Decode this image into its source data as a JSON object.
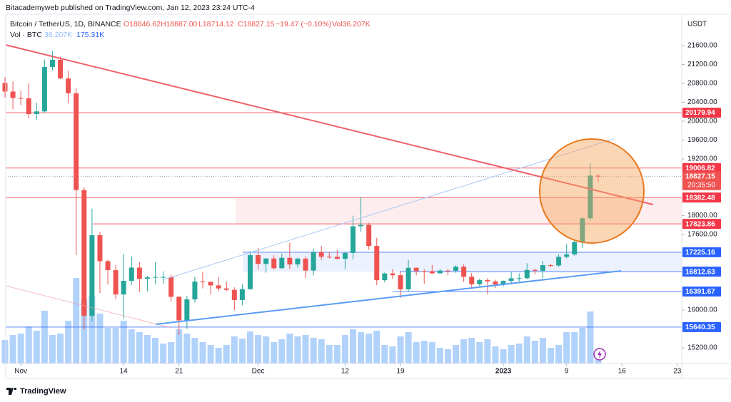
{
  "chart_data": {
    "type": "candlestick",
    "header": "Bitacademyweb published on TradingView.com, Jan 12, 2023 23:24 UTC-4",
    "symbol": "Bitcoin / TetherUS, 1D, BINANCE",
    "ohlc_text": {
      "open": "O18846.62",
      "high": "H18887.00",
      "low": "L18714.12",
      "close": "C18827.15",
      "change": "−19.47 (−0.10%)",
      "volume": "Vol36.207K"
    },
    "volume_legend": {
      "name": "Vol · BTC",
      "value": "36.207K",
      "ma": "175.31K"
    },
    "currency": "USDT",
    "countdown": "20:35:50",
    "footer": "TradingView",
    "up_color": "#26a69a",
    "down_color": "#ef5350",
    "volume_color": "#90bff9",
    "grid": false,
    "x": [
      "2022-10-30",
      "2022-10-31",
      "2022-11-01",
      "2022-11-02",
      "2022-11-03",
      "2022-11-04",
      "2022-11-05",
      "2022-11-06",
      "2022-11-07",
      "2022-11-08",
      "2022-11-09",
      "2022-11-10",
      "2022-11-11",
      "2022-11-12",
      "2022-11-13",
      "2022-11-14",
      "2022-11-15",
      "2022-11-16",
      "2022-11-17",
      "2022-11-18",
      "2022-11-19",
      "2022-11-20",
      "2022-11-21",
      "2022-11-22",
      "2022-11-23",
      "2022-11-24",
      "2022-11-25",
      "2022-11-26",
      "2022-11-27",
      "2022-11-28",
      "2022-11-29",
      "2022-11-30",
      "2022-12-01",
      "2022-12-02",
      "2022-12-03",
      "2022-12-04",
      "2022-12-05",
      "2022-12-06",
      "2022-12-07",
      "2022-12-08",
      "2022-12-09",
      "2022-12-10",
      "2022-12-11",
      "2022-12-12",
      "2022-12-13",
      "2022-12-14",
      "2022-12-15",
      "2022-12-16",
      "2022-12-17",
      "2022-12-18",
      "2022-12-19",
      "2022-12-20",
      "2022-12-21",
      "2022-12-22",
      "2022-12-23",
      "2022-12-24",
      "2022-12-25",
      "2022-12-26",
      "2022-12-27",
      "2022-12-28",
      "2022-12-29",
      "2022-12-30",
      "2022-12-31",
      "2023-01-01",
      "2023-01-02",
      "2023-01-03",
      "2023-01-04",
      "2023-01-05",
      "2023-01-06",
      "2023-01-07",
      "2023-01-08",
      "2023-01-09",
      "2023-01-10",
      "2023-01-11",
      "2023-01-12",
      "2023-01-13"
    ],
    "open": [
      20810,
      20627,
      20490,
      20483,
      20151,
      20207,
      21148,
      21300,
      20905,
      20591,
      18541,
      15880,
      17586,
      17035,
      16845,
      16330,
      16619,
      16900,
      16662,
      16692,
      16700,
      16700,
      16280,
      15781,
      16226,
      16603,
      16598,
      16522,
      16458,
      16428,
      16212,
      16442,
      17163,
      16977,
      17092,
      16885,
      17105,
      16967,
      17089,
      16836,
      17224,
      17128,
      17127,
      17085,
      17209,
      17774,
      17803,
      17357,
      16632,
      16776,
      16738,
      16438,
      16895,
      16824,
      16821,
      16778,
      16836,
      16832,
      16919,
      16706,
      16547,
      16633,
      16607,
      16542,
      16616,
      16672,
      16675,
      16850,
      16831,
      16950,
      16943,
      17127,
      17178,
      17440,
      17943,
      18846.62
    ],
    "high": [
      20930,
      20840,
      20650,
      20800,
      20393,
      21302,
      21480,
      21365,
      21069,
      20700,
      18600,
      18150,
      17660,
      17070,
      16954,
      17190,
      17134,
      17015,
      16727,
      17011,
      16820,
      16746,
      16294,
      16300,
      16708,
      16812,
      16603,
      16700,
      16600,
      16480,
      16550,
      17250,
      17320,
      17100,
      17160,
      17200,
      17424,
      17111,
      17140,
      17299,
      17360,
      17227,
      17270,
      17241,
      18000,
      18387,
      17846,
      17530,
      16796,
      16864,
      16815,
      17061,
      16900,
      16868,
      16955,
      16869,
      16868,
      16944,
      16972,
      16785,
      16664,
      16677,
      16644,
      16628,
      16799,
      16778,
      16991,
      16879,
      17042,
      16981,
      17176,
      17398,
      17500,
      17980,
      19117,
      18887
    ],
    "low": [
      20500,
      20250,
      20340,
      20060,
      20031,
      20180,
      21080,
      20890,
      20384,
      17166,
      15588,
      15754,
      16361,
      16540,
      16229,
      15815,
      16527,
      16378,
      16400,
      16546,
      16560,
      16180,
      15476,
      15600,
      16160,
      16458,
      16330,
      16400,
      16400,
      16000,
      16100,
      16430,
      16856,
      16790,
      16860,
      16880,
      16868,
      16900,
      16678,
      16733,
      17060,
      17092,
      17071,
      16871,
      17074,
      17660,
      17275,
      16527,
      16584,
      16663,
      16256,
      16398,
      16735,
      16560,
      16759,
      16773,
      16732,
      16791,
      16592,
      16465,
      16508,
      16333,
      16470,
      16499,
      16548,
      16605,
      16652,
      16753,
      16679,
      16908,
      16911,
      17095,
      17153,
      17315,
      17892,
      18714.12
    ],
    "close": [
      20627,
      20490,
      20483,
      20151,
      20207,
      21148,
      21300,
      20905,
      20591,
      18541,
      15880,
      17586,
      17035,
      16845,
      16330,
      16619,
      16900,
      16662,
      16692,
      16700,
      16700,
      16280,
      15781,
      16226,
      16603,
      16598,
      16522,
      16458,
      16428,
      16212,
      16442,
      17163,
      16977,
      17092,
      16885,
      17105,
      16967,
      17089,
      16836,
      17224,
      17128,
      17127,
      17085,
      17209,
      17774,
      17803,
      17357,
      16632,
      16776,
      16738,
      16438,
      16895,
      16824,
      16821,
      16778,
      16836,
      16832,
      16919,
      16706,
      16547,
      16633,
      16607,
      16542,
      16616,
      16672,
      16675,
      16850,
      16831,
      16950,
      16943,
      17127,
      17178,
      17440,
      17943,
      18846.62,
      18827.15
    ],
    "volume": [
      132000,
      160000,
      168000,
      208000,
      184000,
      296000,
      160000,
      168000,
      240000,
      480000,
      360000,
      380000,
      280000,
      200000,
      200000,
      240000,
      192000,
      176000,
      160000,
      144000,
      112000,
      120000,
      192000,
      168000,
      144000,
      120000,
      104000,
      88000,
      104000,
      152000,
      140000,
      180000,
      160000,
      152000,
      120000,
      136000,
      168000,
      152000,
      160000,
      144000,
      136000,
      104000,
      104000,
      160000,
      192000,
      176000,
      168000,
      184000,
      104000,
      96000,
      152000,
      176000,
      120000,
      128000,
      120000,
      88000,
      80000,
      104000,
      136000,
      144000,
      120000,
      136000,
      96000,
      80000,
      104000,
      112000,
      152000,
      128000,
      144000,
      88000,
      104000,
      176000,
      176000,
      200000,
      292000,
      36207
    ],
    "ylim": [
      14900,
      22300
    ],
    "yticks": [
      {
        "value": 15200,
        "label": "15200.00"
      },
      {
        "value": 16000,
        "label": "16000.00"
      },
      {
        "value": 17600,
        "label": "17600.00"
      },
      {
        "value": 18000,
        "label": "18000.00"
      },
      {
        "value": 19200,
        "label": "19200.00"
      },
      {
        "value": 19600,
        "label": "19600.00"
      },
      {
        "value": 20000,
        "label": "20000.00"
      },
      {
        "value": 20400,
        "label": "20400.00"
      },
      {
        "value": 20800,
        "label": "20800.00"
      },
      {
        "value": 21200,
        "label": "21200.00"
      },
      {
        "value": 21600,
        "label": "21600.00"
      }
    ],
    "xticks": [
      {
        "value": "2022-11-01",
        "label": "Nov"
      },
      {
        "value": "2022-11-14",
        "label": "14"
      },
      {
        "value": "2022-11-21",
        "label": "21"
      },
      {
        "value": "2022-12-01",
        "label": "Dec"
      },
      {
        "value": "2022-12-12",
        "label": "12"
      },
      {
        "value": "2022-12-19",
        "label": "19"
      },
      {
        "value": "2023-01-01",
        "label": "2023"
      },
      {
        "value": "2023-01-09",
        "label": "9"
      },
      {
        "value": "2023-01-16",
        "label": "16"
      },
      {
        "value": "2023-01-23",
        "label": "23"
      }
    ],
    "levels": [
      {
        "value": 20179.94,
        "color": "#f23645"
      },
      {
        "value": 19006.82,
        "color": "#f23645"
      },
      {
        "value": 18382.48,
        "color": "#f23645"
      },
      {
        "value": 17823.86,
        "color": "#f23645"
      },
      {
        "value": 17225.16,
        "color": "#2962ff"
      },
      {
        "value": 16812.63,
        "color": "#2962ff"
      },
      {
        "value": 16391.67,
        "color": "#2962ff"
      },
      {
        "value": 15640.35,
        "color": "#2962ff"
      }
    ]
  }
}
